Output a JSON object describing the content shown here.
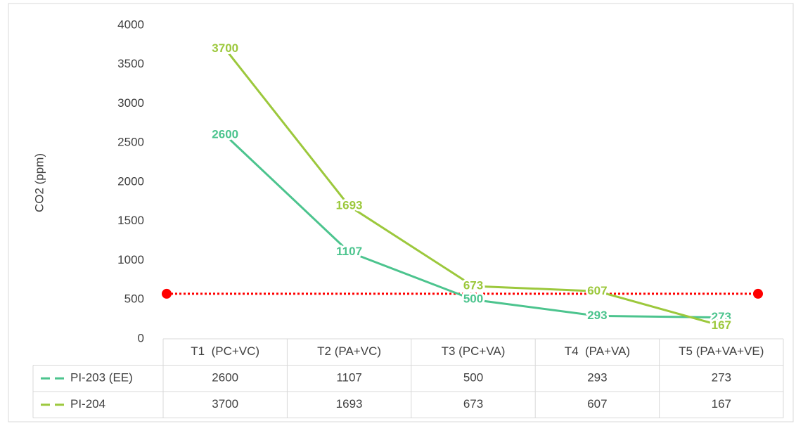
{
  "chart_data": {
    "type": "line",
    "y_label": "CO2 (ppm)",
    "categories": [
      "T1  (PC+VC)",
      "T2 (PA+VC)",
      "T3 (PC+VA)",
      "T4  (PA+VA)",
      "T5 (PA+VA+VE)"
    ],
    "series": [
      {
        "name": "PI-203 (EE)",
        "color": "#4cc48e",
        "values": [
          2600,
          1107,
          500,
          293,
          273
        ]
      },
      {
        "name": "PI-204",
        "color": "#9cc83c",
        "values": [
          3700,
          1693,
          673,
          607,
          167
        ]
      }
    ],
    "ylim": [
      0,
      4000
    ],
    "yticks": [
      0,
      500,
      1000,
      1500,
      2000,
      2500,
      3000,
      3500,
      4000
    ],
    "reference_line": {
      "value": 575,
      "color": "#ff0000"
    },
    "data_table": true
  }
}
